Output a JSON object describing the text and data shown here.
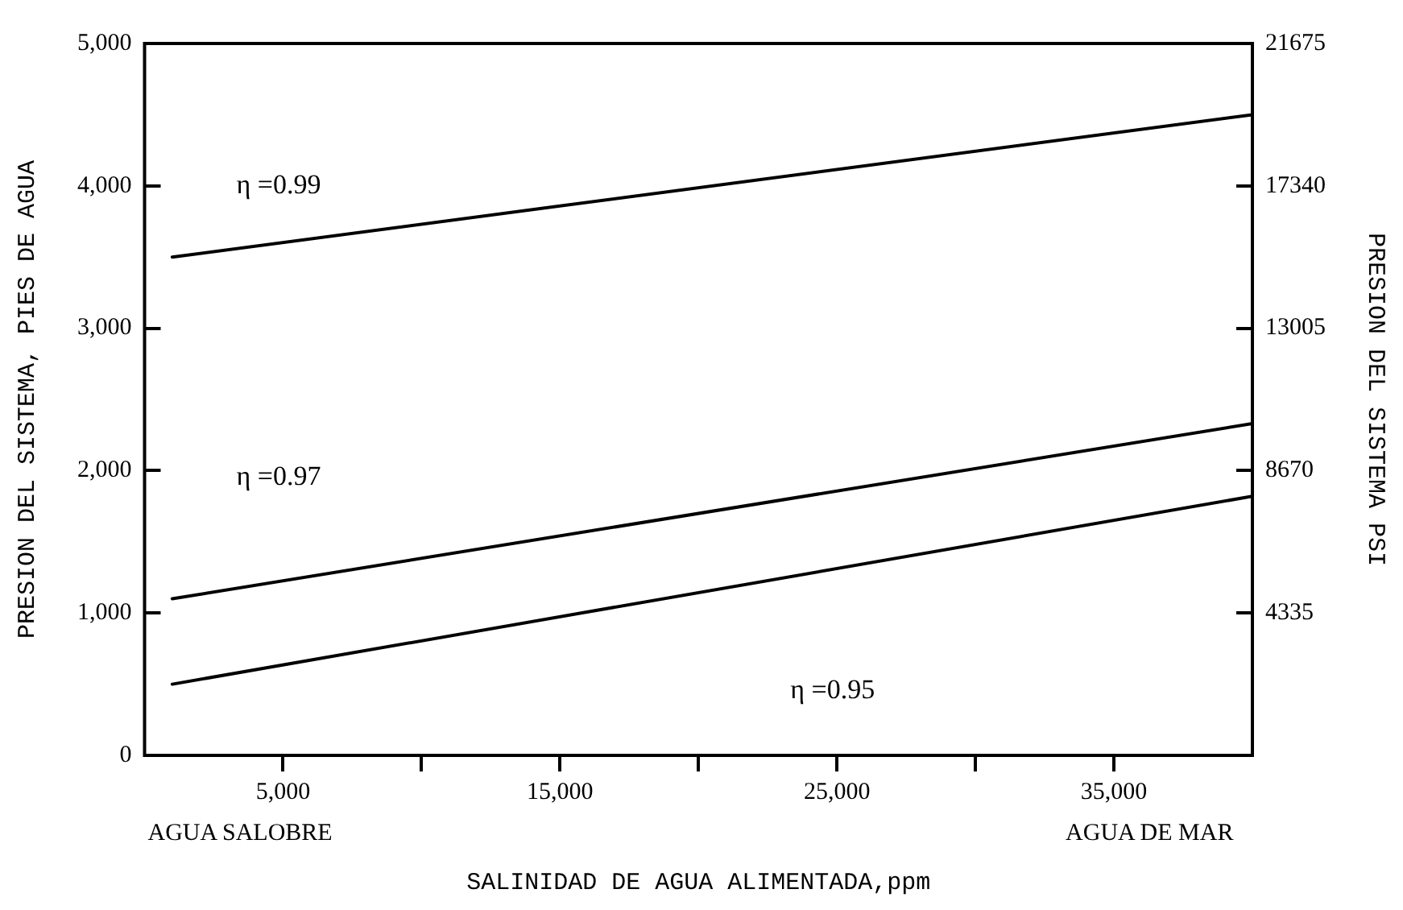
{
  "chart_data": {
    "type": "line",
    "xlabel": "SALINIDAD DE AGUA ALIMENTADA,ppm",
    "ylabel": "PRESION DEL SISTEMA, PIES DE AGUA",
    "y2label": "PRESION DEL SISTEMA PSI",
    "x": [
      1000,
      40000
    ],
    "series": [
      {
        "color": "#000000",
        "values": [
          3500,
          4500
        ]
      },
      {
        "color": "#000000",
        "values": [
          1100,
          2330
        ]
      },
      {
        "color": "#000000",
        "values": [
          500,
          1820
        ]
      }
    ],
    "xlim": [
      0,
      40000
    ],
    "xticks": [
      {
        "value": 5000,
        "label": "5,000"
      },
      {
        "value": 10000,
        "label": null
      },
      {
        "value": 15000,
        "label": "15,000"
      },
      {
        "value": 20000,
        "label": null
      },
      {
        "value": 25000,
        "label": "25,000"
      },
      {
        "value": 30000,
        "label": null
      },
      {
        "value": 35000,
        "label": "35,000"
      }
    ],
    "ylim": [
      0,
      5000
    ],
    "yticks": [
      0,
      {
        "value": 1000,
        "label": "1,000"
      },
      {
        "value": 2000,
        "label": "2,000"
      },
      {
        "value": 3000,
        "label": "3,000"
      },
      {
        "value": 4000,
        "label": "4,000"
      },
      {
        "value": 5000,
        "label": "5,000"
      }
    ],
    "y2lim": [
      0,
      21675
    ],
    "y2ticks": [
      4335,
      8670,
      13005,
      17340,
      21675
    ],
    "annotations": [
      "η =0.99",
      "η =0.97",
      "η =0.95",
      "AGUA SALOBRE",
      "AGUA DE MAR"
    ],
    "grid": false,
    "legend": false,
    "marker": "none",
    "line_style": "solid"
  }
}
